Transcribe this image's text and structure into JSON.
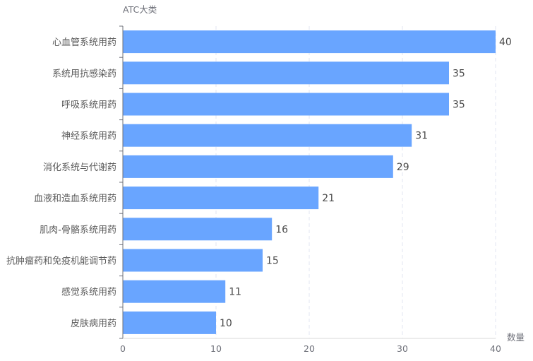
{
  "chart_data": {
    "type": "bar",
    "orientation": "horizontal",
    "y_axis_name": "ATC大类",
    "x_axis_name": "数量",
    "categories": [
      "心血管系统用药",
      "系统用抗感染药",
      "呼吸系统用药",
      "神经系统用药",
      "消化系统与代谢药",
      "血液和造血系统用药",
      "肌肉-骨骼系统用药",
      "抗肿瘤药和免疫机能调节药",
      "感觉系统用药",
      "皮肤病用药"
    ],
    "values": [
      40,
      35,
      35,
      31,
      29,
      21,
      16,
      15,
      11,
      10
    ],
    "xlim": [
      0,
      40
    ],
    "x_ticks": [
      "0",
      "10",
      "20",
      "30",
      "40"
    ],
    "grid": "vertical dashed",
    "bar_color": "#69a5ff"
  }
}
